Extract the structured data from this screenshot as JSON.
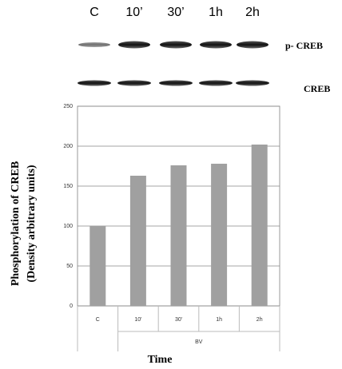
{
  "blot": {
    "lanes": [
      "C",
      "10’",
      "30’",
      "1h",
      "2h"
    ],
    "rows": [
      "p- CREB",
      "CREB"
    ]
  },
  "chart_data": {
    "type": "bar",
    "categories": [
      "C",
      "10'",
      "30'",
      "1h",
      "2h"
    ],
    "group_label": "BV",
    "values": [
      100,
      163,
      176,
      178,
      202
    ],
    "color": "#a0a0a0",
    "ylim": [
      0,
      250
    ],
    "yticks": [
      0,
      50,
      100,
      150,
      200,
      250
    ],
    "grid": true,
    "ylabel": [
      "Phosphorylation of CREB",
      "(Density arbitrary units)"
    ],
    "xlabel": "Time"
  }
}
